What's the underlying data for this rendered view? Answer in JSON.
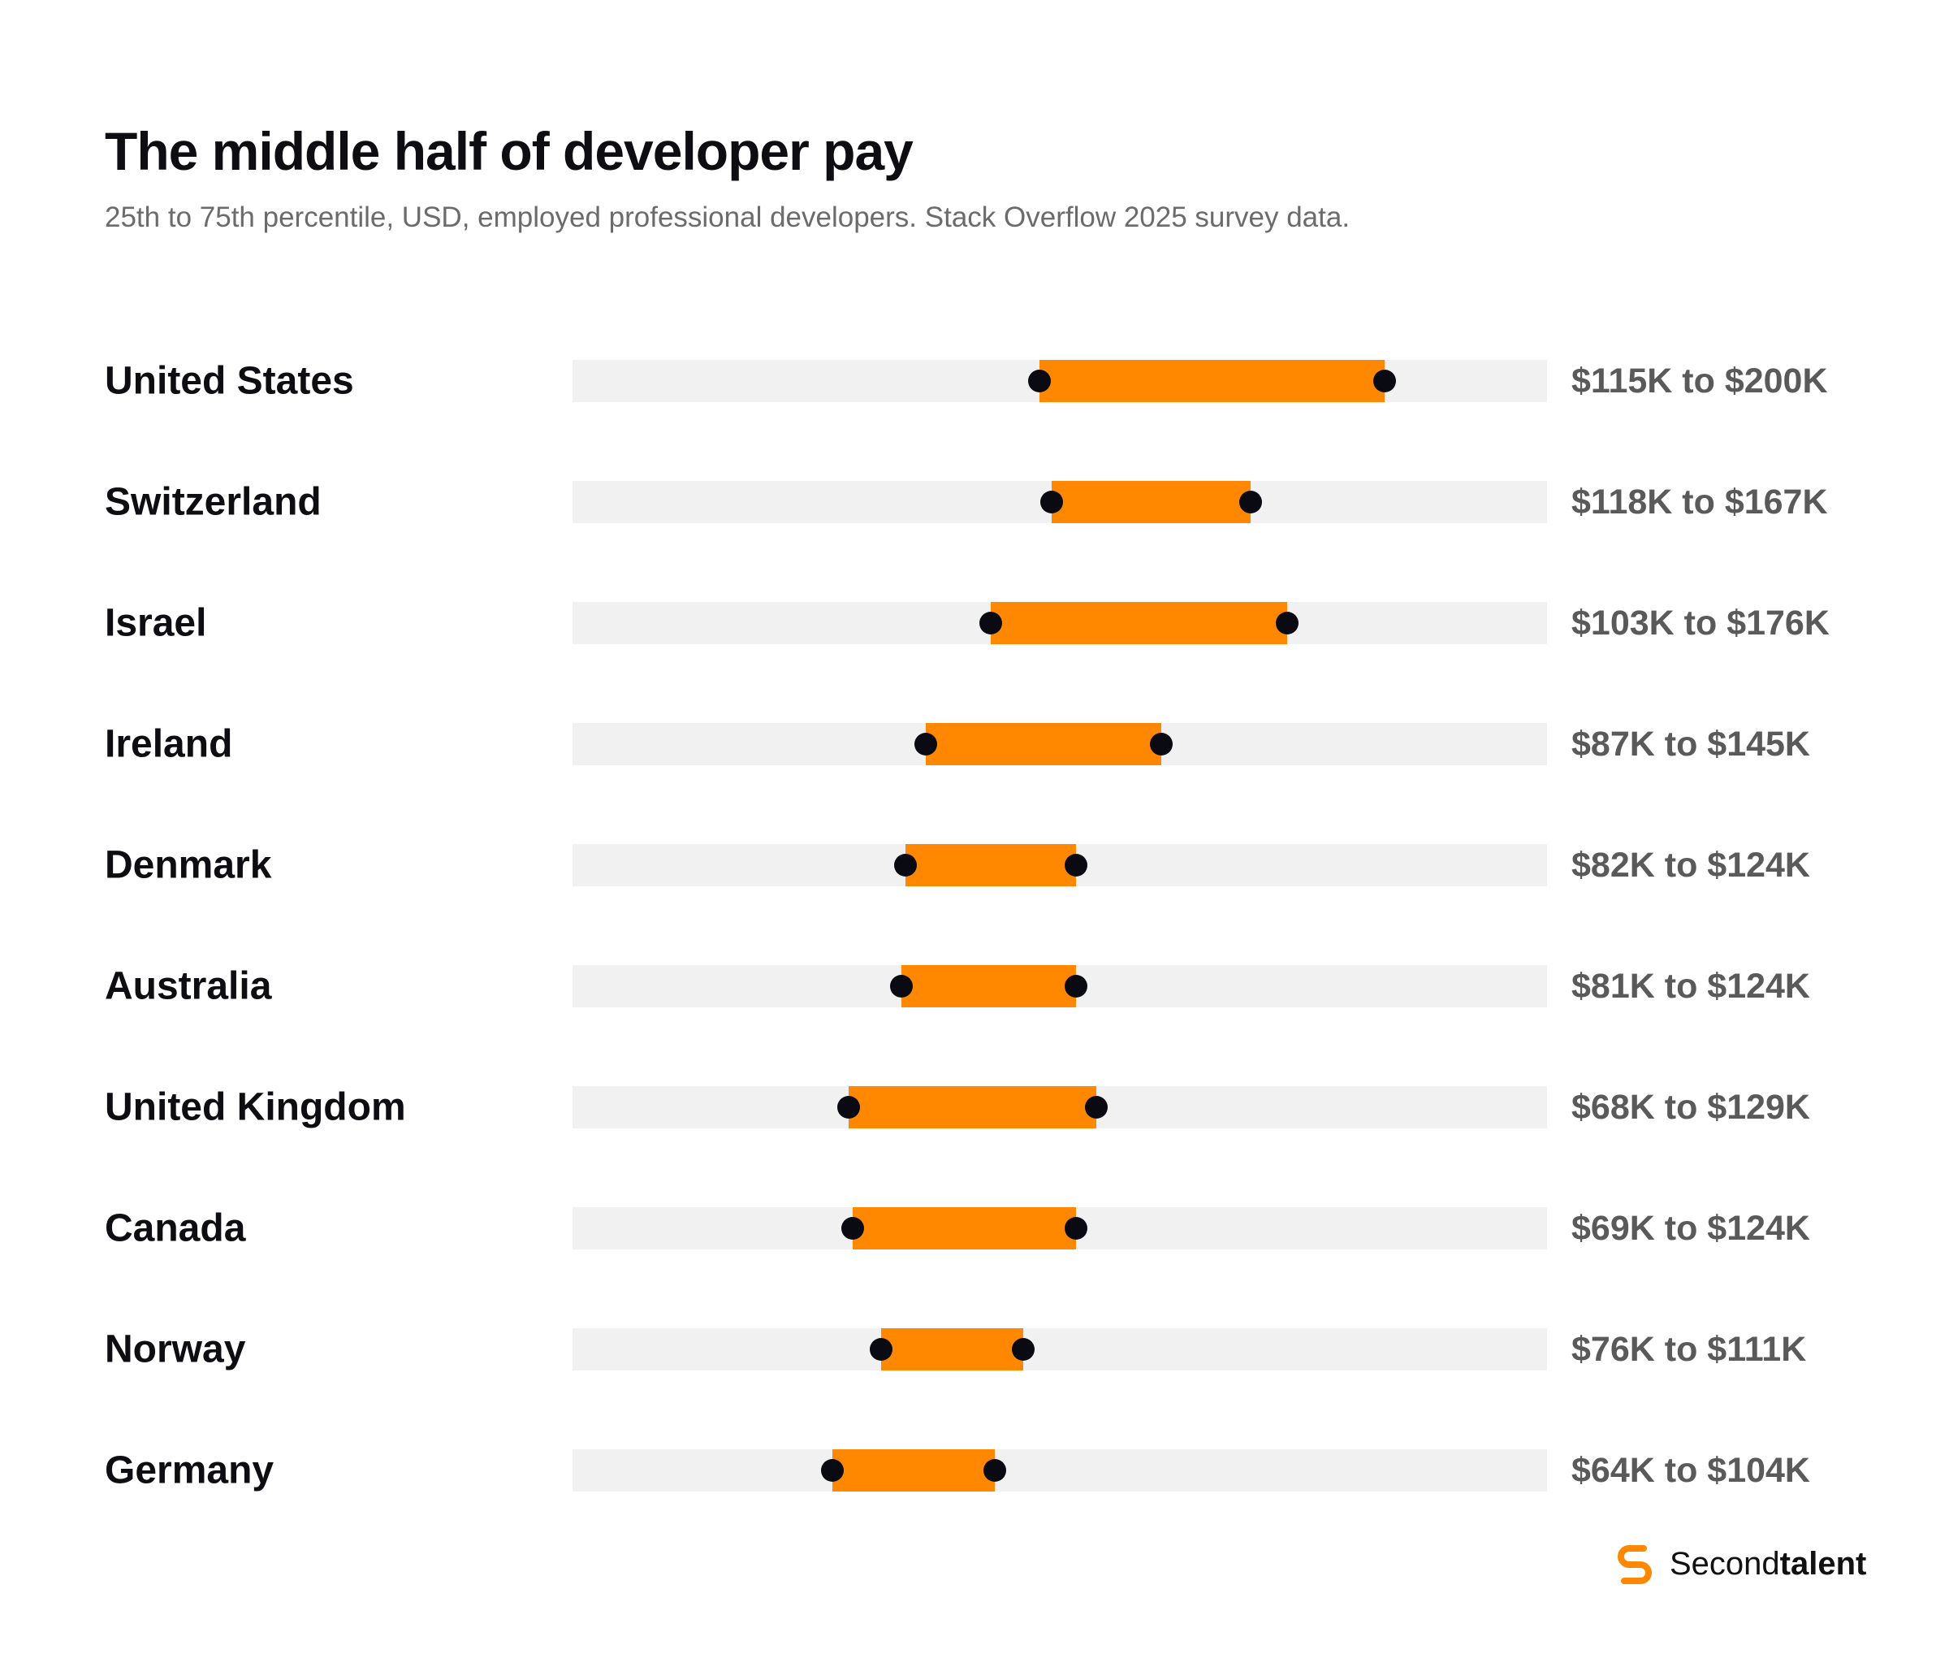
{
  "chart_data": {
    "type": "range",
    "title": "The middle half of developer pay",
    "subtitle": "25th to 75th percentile, USD, employed professional developers. Stack Overflow 2025 survey data.",
    "xlim": [
      0,
      240
    ],
    "unit": "thousand USD",
    "colors": {
      "track": "#f0f1f0",
      "range": "#ff8800",
      "dot": "#0a0a12"
    },
    "rows": [
      {
        "country": "United States",
        "low": 115,
        "high": 200,
        "label": "$115K to $200K"
      },
      {
        "country": "Switzerland",
        "low": 118,
        "high": 167,
        "label": "$118K to $167K"
      },
      {
        "country": "Israel",
        "low": 103,
        "high": 176,
        "label": "$103K to $176K"
      },
      {
        "country": "Ireland",
        "low": 87,
        "high": 145,
        "label": "$87K to $145K"
      },
      {
        "country": "Denmark",
        "low": 82,
        "high": 124,
        "label": "$82K to $124K"
      },
      {
        "country": "Australia",
        "low": 81,
        "high": 124,
        "label": "$81K to $124K"
      },
      {
        "country": "United Kingdom",
        "low": 68,
        "high": 129,
        "label": "$68K to $129K"
      },
      {
        "country": "Canada",
        "low": 69,
        "high": 124,
        "label": "$69K to $124K"
      },
      {
        "country": "Norway",
        "low": 76,
        "high": 111,
        "label": "$76K to $111K"
      },
      {
        "country": "Germany",
        "low": 64,
        "high": 104,
        "label": "$64K to $104K"
      }
    ]
  },
  "brand": {
    "icon": "secondtalent-logo-icon",
    "name_regular": "Second",
    "name_bold": "talent",
    "color": "#ff8800"
  }
}
